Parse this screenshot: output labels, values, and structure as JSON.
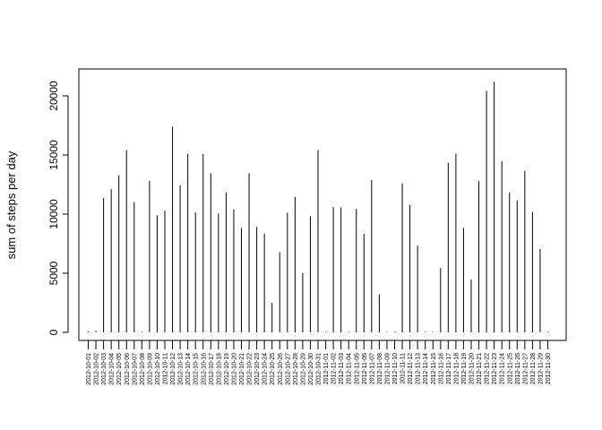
{
  "chart_data": {
    "type": "bar",
    "style": "histogram-lines",
    "ylabel": "sum of steps per day",
    "xlabel": "",
    "title": "",
    "ylim": [
      0,
      21194
    ],
    "yticks": [
      0,
      5000,
      10000,
      15000,
      20000
    ],
    "box": true,
    "grid": false,
    "categories": [
      "2012-10-01",
      "2012-10-02",
      "2012-10-03",
      "2012-10-04",
      "2012-10-05",
      "2012-10-06",
      "2012-10-07",
      "2012-10-08",
      "2012-10-09",
      "2012-10-10",
      "2012-10-11",
      "2012-10-12",
      "2012-10-13",
      "2012-10-14",
      "2012-10-15",
      "2012-10-16",
      "2012-10-17",
      "2012-10-18",
      "2012-10-19",
      "2012-10-20",
      "2012-10-21",
      "2012-10-22",
      "2012-10-23",
      "2012-10-24",
      "2012-10-25",
      "2012-10-26",
      "2012-10-27",
      "2012-10-28",
      "2012-10-29",
      "2012-10-30",
      "2012-10-31",
      "2012-11-01",
      "2012-11-02",
      "2012-11-03",
      "2012-11-04",
      "2012-11-05",
      "2012-11-06",
      "2012-11-07",
      "2012-11-08",
      "2012-11-09",
      "2012-11-10",
      "2012-11-11",
      "2012-11-12",
      "2012-11-13",
      "2012-11-14",
      "2012-11-15",
      "2012-11-16",
      "2012-11-17",
      "2012-11-18",
      "2012-11-19",
      "2012-11-20",
      "2012-11-21",
      "2012-11-22",
      "2012-11-23",
      "2012-11-24",
      "2012-11-25",
      "2012-11-26",
      "2012-11-27",
      "2012-11-28",
      "2012-11-29",
      "2012-11-30"
    ],
    "values": [
      0,
      126,
      11352,
      12116,
      13294,
      15420,
      11015,
      0,
      12811,
      9900,
      10304,
      17382,
      12426,
      15098,
      10139,
      15084,
      13452,
      10056,
      11829,
      10395,
      8821,
      13460,
      8918,
      8355,
      2492,
      6778,
      10119,
      11458,
      5018,
      9819,
      15414,
      0,
      10600,
      10571,
      0,
      10439,
      8334,
      12883,
      3219,
      0,
      0,
      12608,
      10765,
      7336,
      0,
      41,
      5441,
      14339,
      15110,
      8841,
      4472,
      12787,
      20427,
      21194,
      14478,
      11834,
      11162,
      13646,
      10183,
      7047,
      0
    ]
  }
}
